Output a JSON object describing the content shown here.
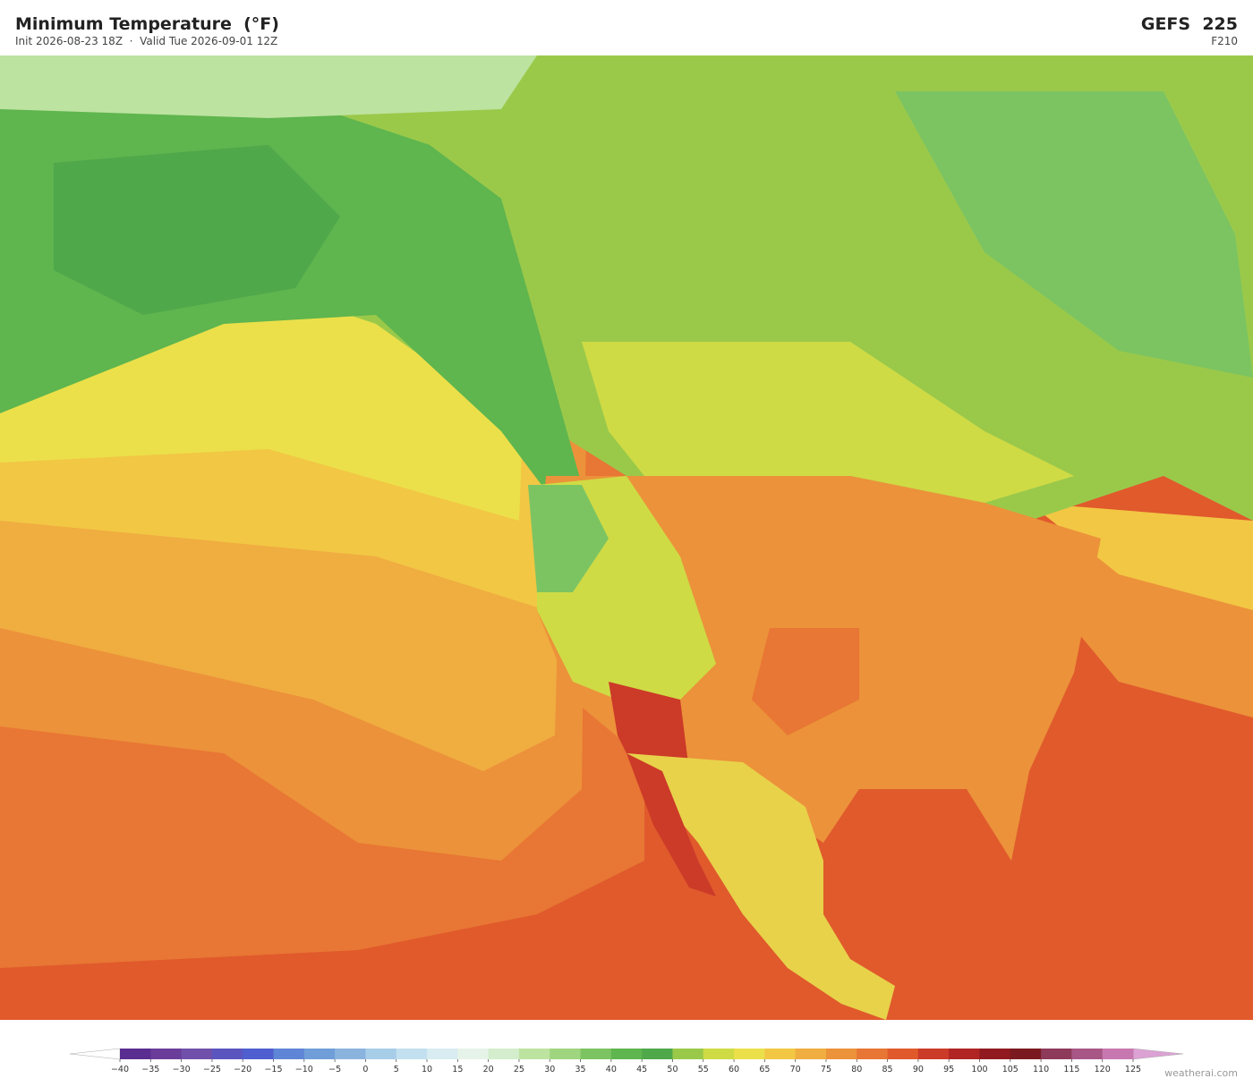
{
  "header": {
    "title": "Minimum Temperature  (°F)",
    "subtitle": "Init 2026-08-23 18Z  ·  Valid Tue 2026-09-01 12Z",
    "model": "GEFS  225",
    "forecast_hour": "F210"
  },
  "colorbar": {
    "ticks": [
      {
        "value": -40,
        "label": "−40"
      },
      {
        "value": -35,
        "label": "−35"
      },
      {
        "value": -30,
        "label": "−30"
      },
      {
        "value": -25,
        "label": "−25"
      },
      {
        "value": -20,
        "label": "−20"
      },
      {
        "value": -15,
        "label": "−15"
      },
      {
        "value": -10,
        "label": "−10"
      },
      {
        "value": -5,
        "label": "−5"
      },
      0,
      5,
      10,
      15,
      20,
      25,
      30,
      35,
      40,
      45,
      50,
      55,
      60,
      65,
      70,
      75,
      80,
      85,
      90,
      95,
      100,
      105,
      110,
      115,
      120,
      125
    ],
    "colors": [
      "#5a2d91",
      "#6a3d9a",
      "#7050aa",
      "#5b55c0",
      "#4f5fcf",
      "#5f85d6",
      "#6f9ed8",
      "#8ab4de",
      "#a7cde9",
      "#c2e0ef",
      "#d8ecf1",
      "#e6f3e8",
      "#d4edcc",
      "#bde3a0",
      "#9fd57f",
      "#7cc461",
      "#5fb54e",
      "#4fa84a",
      "#9ac94a",
      "#cfdb45",
      "#ebe04a",
      "#f2c744",
      "#f0ad40",
      "#ec923a",
      "#e87634",
      "#e05a2c",
      "#cc3a28",
      "#b02424",
      "#901a1f",
      "#7a1a20",
      "#8e3a5a",
      "#a85686",
      "#c878b0"
    ],
    "under_color": "#ffffff",
    "over_color": "#dca2d4"
  },
  "footer": {
    "credit": "weatherai.com"
  }
}
